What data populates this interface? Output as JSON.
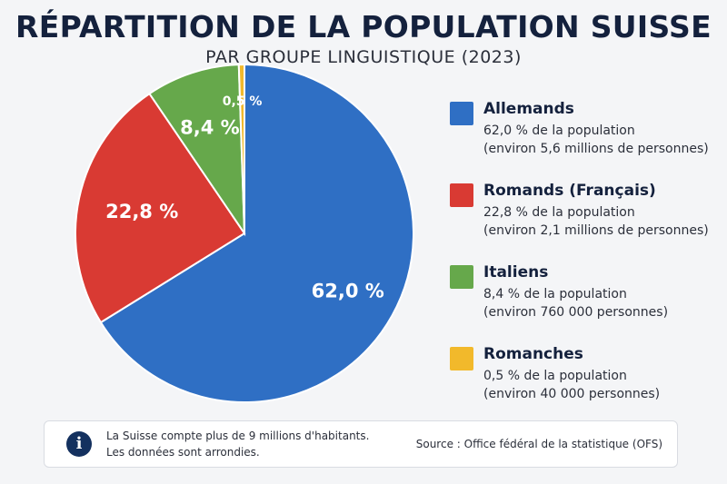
{
  "title": "RÉPARTITION DE LA POPULATION SUISSE",
  "subtitle": "PAR GROUPE LINGUISTIQUE (2023)",
  "chart_data": {
    "type": "pie",
    "categories": [
      "Allemands",
      "Romands (Français)",
      "Italiens",
      "Romanches"
    ],
    "values": [
      62.0,
      22.8,
      8.4,
      0.5
    ],
    "slice_labels": [
      "62,0 %",
      "22,8 %",
      "8,4 %",
      "0,5 %"
    ],
    "colors": [
      "#2f6fc4",
      "#d93a33",
      "#66a84b",
      "#f2b92b"
    ]
  },
  "legend": [
    {
      "name": "Allemands",
      "line1": "62,0 % de la population",
      "line2": "(environ 5,6 millions de personnes)",
      "color": "#2f6fc4"
    },
    {
      "name": "Romands (Français)",
      "line1": "22,8 % de la population",
      "line2": "(environ 2,1 millions de personnes)",
      "color": "#d93a33"
    },
    {
      "name": "Italiens",
      "line1": "8,4 % de la population",
      "line2": "(environ 760 000 personnes)",
      "color": "#66a84b"
    },
    {
      "name": "Romanches",
      "line1": "0,5 % de la population",
      "line2": "(environ 40 000 personnes)",
      "color": "#f2b92b"
    }
  ],
  "footer": {
    "icon": "info-icon",
    "note_line1": "La Suisse compte plus de 9 millions d'habitants.",
    "note_line2": "Les données sont arrondies.",
    "source": "Source : Office fédéral de la statistique (OFS)"
  }
}
